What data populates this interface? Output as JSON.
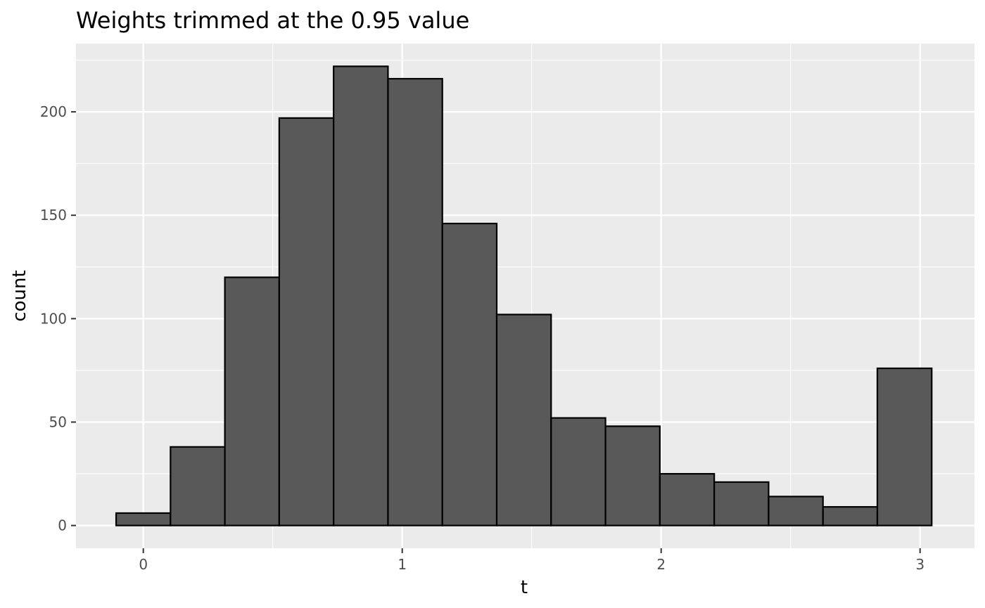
{
  "chart_data": {
    "type": "bar",
    "title": "Weights trimmed at the 0.95 value",
    "xlabel": "t",
    "ylabel": "count",
    "xlim": [
      -0.26,
      3.21
    ],
    "ylim": [
      -11,
      233
    ],
    "x_ticks": [
      0,
      1,
      2,
      3
    ],
    "x_tick_labels": [
      "0",
      "1",
      "2",
      "3"
    ],
    "y_ticks": [
      0,
      50,
      100,
      150,
      200
    ],
    "y_tick_labels": [
      "0",
      "50",
      "100",
      "150",
      "200"
    ],
    "grid": true,
    "legend": "none",
    "bins": [
      {
        "x0": -0.105,
        "x1": 0.105,
        "count": 6
      },
      {
        "x0": 0.105,
        "x1": 0.315,
        "count": 38
      },
      {
        "x0": 0.315,
        "x1": 0.525,
        "count": 120
      },
      {
        "x0": 0.525,
        "x1": 0.735,
        "count": 197
      },
      {
        "x0": 0.735,
        "x1": 0.945,
        "count": 222
      },
      {
        "x0": 0.945,
        "x1": 1.155,
        "count": 216
      },
      {
        "x0": 1.155,
        "x1": 1.365,
        "count": 146
      },
      {
        "x0": 1.365,
        "x1": 1.575,
        "count": 102
      },
      {
        "x0": 1.575,
        "x1": 1.785,
        "count": 52
      },
      {
        "x0": 1.785,
        "x1": 1.995,
        "count": 48
      },
      {
        "x0": 1.995,
        "x1": 2.205,
        "count": 25
      },
      {
        "x0": 2.205,
        "x1": 2.415,
        "count": 21
      },
      {
        "x0": 2.415,
        "x1": 2.625,
        "count": 14
      },
      {
        "x0": 2.625,
        "x1": 2.835,
        "count": 9
      },
      {
        "x0": 2.835,
        "x1": 3.045,
        "count": 76
      }
    ]
  },
  "colors": {
    "bar_fill": "#595959",
    "bar_outline": "#000000",
    "panel_background": "#ebebeb",
    "grid": "#ffffff"
  }
}
